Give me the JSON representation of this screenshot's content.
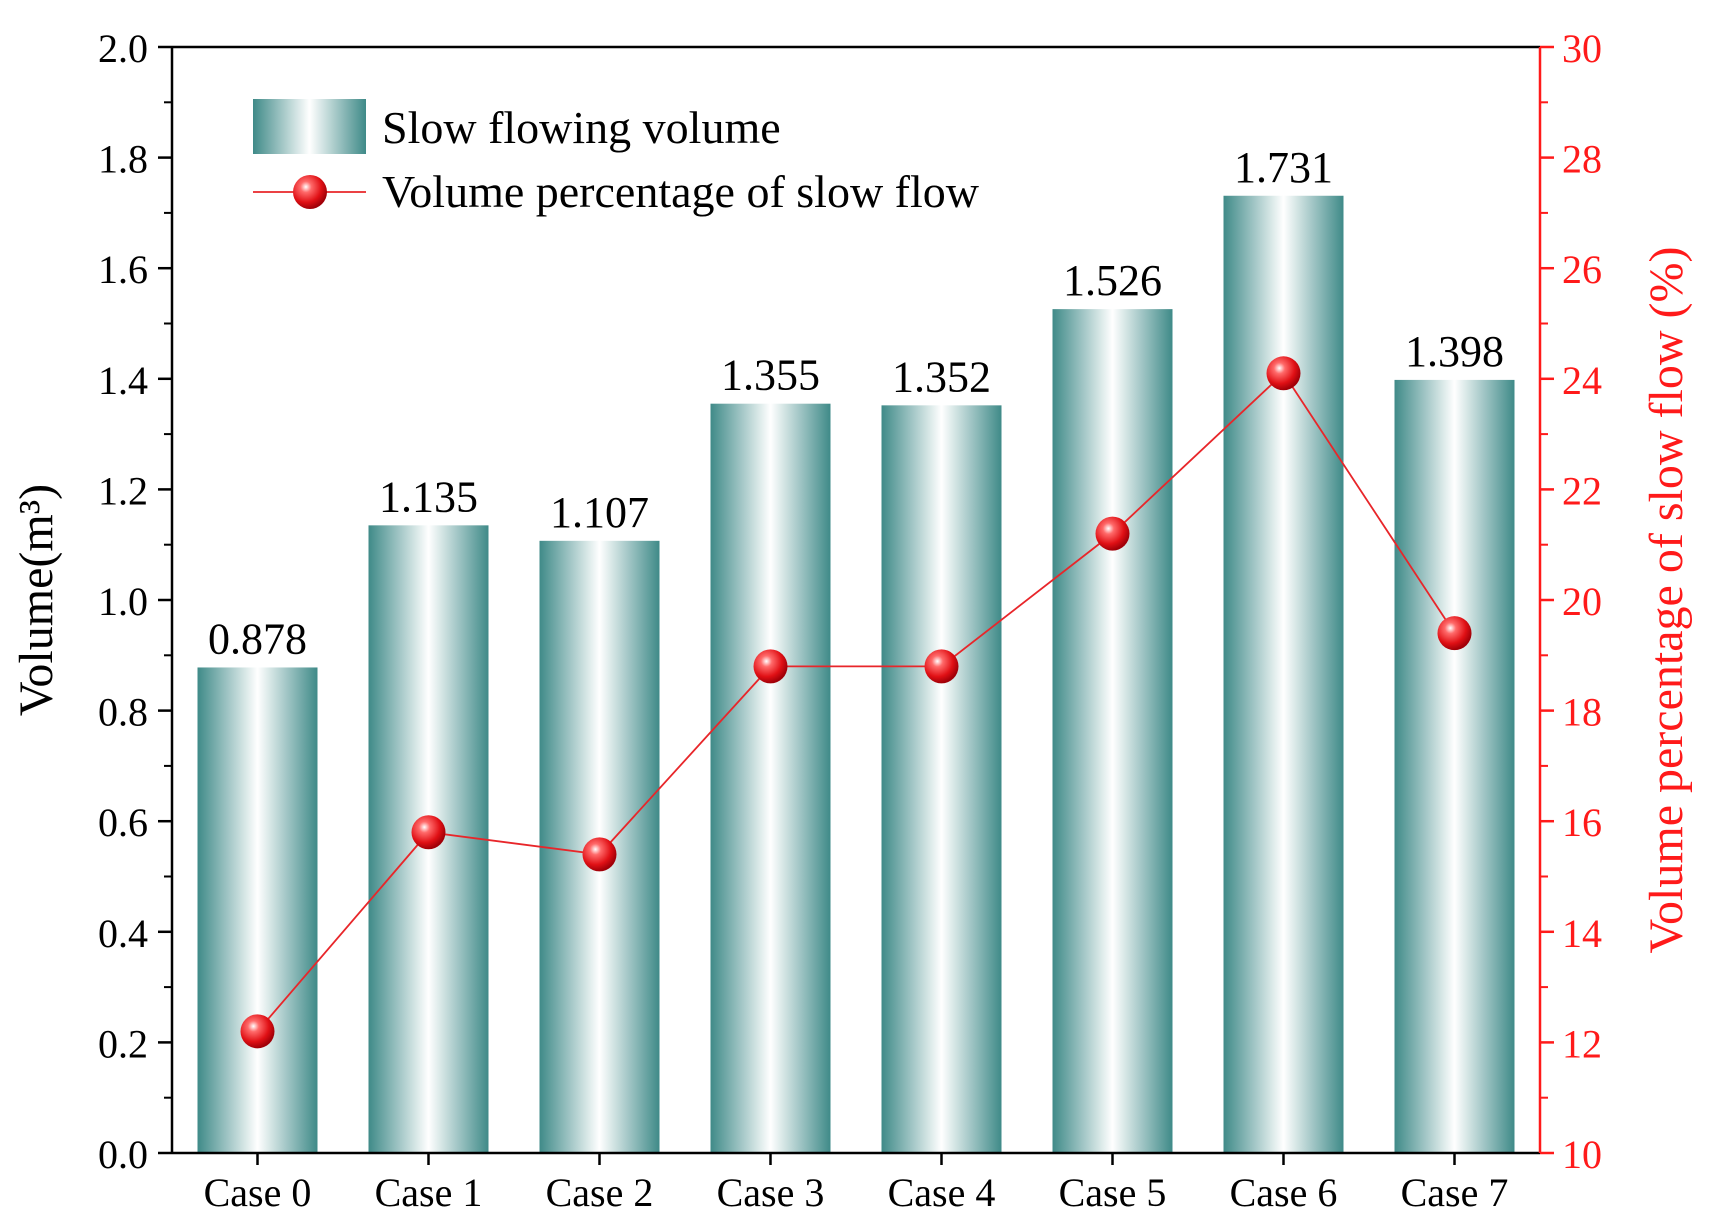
{
  "chart_data": {
    "type": "bar+line",
    "categories": [
      "Case 0",
      "Case 1",
      "Case 2",
      "Case 3",
      "Case 4",
      "Case 5",
      "Case 6",
      "Case 7"
    ],
    "series": [
      {
        "name": "Slow flowing volume",
        "axis": "left",
        "kind": "bar",
        "values": [
          0.878,
          1.135,
          1.107,
          1.355,
          1.352,
          1.526,
          1.731,
          1.398
        ],
        "labels": [
          "0.878",
          "1.135",
          "1.107",
          "1.355",
          "1.352",
          "1.526",
          "1.731",
          "1.398"
        ]
      },
      {
        "name": "Volume percentage of slow flow",
        "axis": "right",
        "kind": "line",
        "values": [
          12.2,
          15.8,
          15.4,
          18.8,
          18.8,
          21.2,
          24.1,
          19.4
        ]
      }
    ],
    "ylabel_left": "Volume(m³)",
    "ylabel_right": "Volume percentage of slow flow (%)",
    "ylim_left": [
      0.0,
      2.0
    ],
    "yticks_left": [
      "0.0",
      "0.2",
      "0.4",
      "0.6",
      "0.8",
      "1.0",
      "1.2",
      "1.4",
      "1.6",
      "1.8",
      "2.0"
    ],
    "ylim_right": [
      10,
      30
    ],
    "yticks_right": [
      "10",
      "12",
      "14",
      "16",
      "18",
      "20",
      "22",
      "24",
      "26",
      "28",
      "30"
    ],
    "legend_position": "top-left",
    "colors": {
      "bar_dark": "#3f8a88",
      "bar_light": "#ffffff",
      "line": "#e8262a",
      "marker": "#e81a1e",
      "right_axis": "#ff1a1a",
      "axis": "#000000"
    }
  }
}
